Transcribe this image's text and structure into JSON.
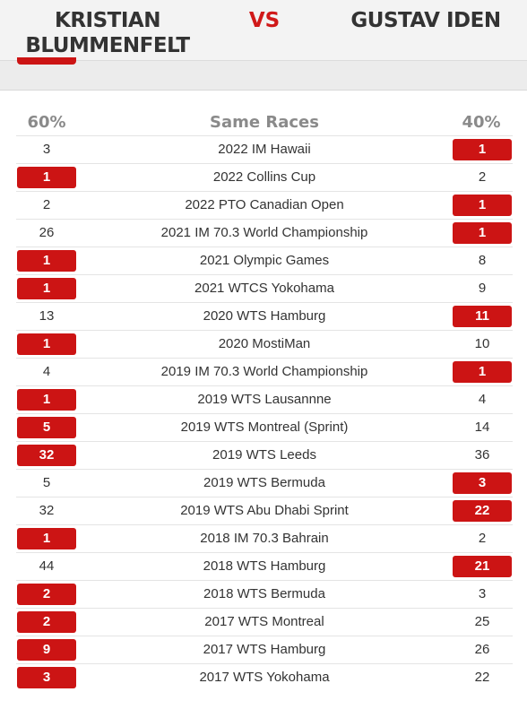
{
  "header": {
    "left_name_line1": "KRISTIAN",
    "left_name_line2": "BLUMMENFELT",
    "vs": "VS",
    "right_name": "GUSTAV IDEN"
  },
  "table": {
    "left_percent": "60%",
    "title": "Same Races",
    "right_percent": "40%",
    "rows": [
      {
        "left": "3",
        "race": "2022 IM Hawaii",
        "right": "1",
        "winner": "right"
      },
      {
        "left": "1",
        "race": "2022 Collins Cup",
        "right": "2",
        "winner": "left"
      },
      {
        "left": "2",
        "race": "2022 PTO Canadian Open",
        "right": "1",
        "winner": "right"
      },
      {
        "left": "26",
        "race": "2021 IM 70.3 World Championship",
        "right": "1",
        "winner": "right"
      },
      {
        "left": "1",
        "race": "2021 Olympic Games",
        "right": "8",
        "winner": "left"
      },
      {
        "left": "1",
        "race": "2021 WTCS Yokohama",
        "right": "9",
        "winner": "left"
      },
      {
        "left": "13",
        "race": "2020 WTS Hamburg",
        "right": "11",
        "winner": "right"
      },
      {
        "left": "1",
        "race": "2020 MostiMan",
        "right": "10",
        "winner": "left"
      },
      {
        "left": "4",
        "race": "2019 IM 70.3 World Championship",
        "right": "1",
        "winner": "right"
      },
      {
        "left": "1",
        "race": "2019 WTS Lausannne",
        "right": "4",
        "winner": "left"
      },
      {
        "left": "5",
        "race": "2019 WTS Montreal (Sprint)",
        "right": "14",
        "winner": "left"
      },
      {
        "left": "32",
        "race": "2019 WTS Leeds",
        "right": "36",
        "winner": "left"
      },
      {
        "left": "5",
        "race": "2019 WTS Bermuda",
        "right": "3",
        "winner": "right"
      },
      {
        "left": "32",
        "race": "2019 WTS Abu Dhabi Sprint",
        "right": "22",
        "winner": "right"
      },
      {
        "left": "1",
        "race": "2018 IM 70.3 Bahrain",
        "right": "2",
        "winner": "left"
      },
      {
        "left": "44",
        "race": "2018 WTS Hamburg",
        "right": "21",
        "winner": "right"
      },
      {
        "left": "2",
        "race": "2018 WTS Bermuda",
        "right": "3",
        "winner": "left"
      },
      {
        "left": "2",
        "race": "2017 WTS Montreal",
        "right": "25",
        "winner": "left"
      },
      {
        "left": "9",
        "race": "2017 WTS Hamburg",
        "right": "26",
        "winner": "left"
      },
      {
        "left": "3",
        "race": "2017 WTS Yokohama",
        "right": "22",
        "winner": "left"
      }
    ]
  },
  "colors": {
    "accent": "#cc1414",
    "vs": "#d01919",
    "header_text": "#333333",
    "column_head": "#8a8a8a"
  }
}
